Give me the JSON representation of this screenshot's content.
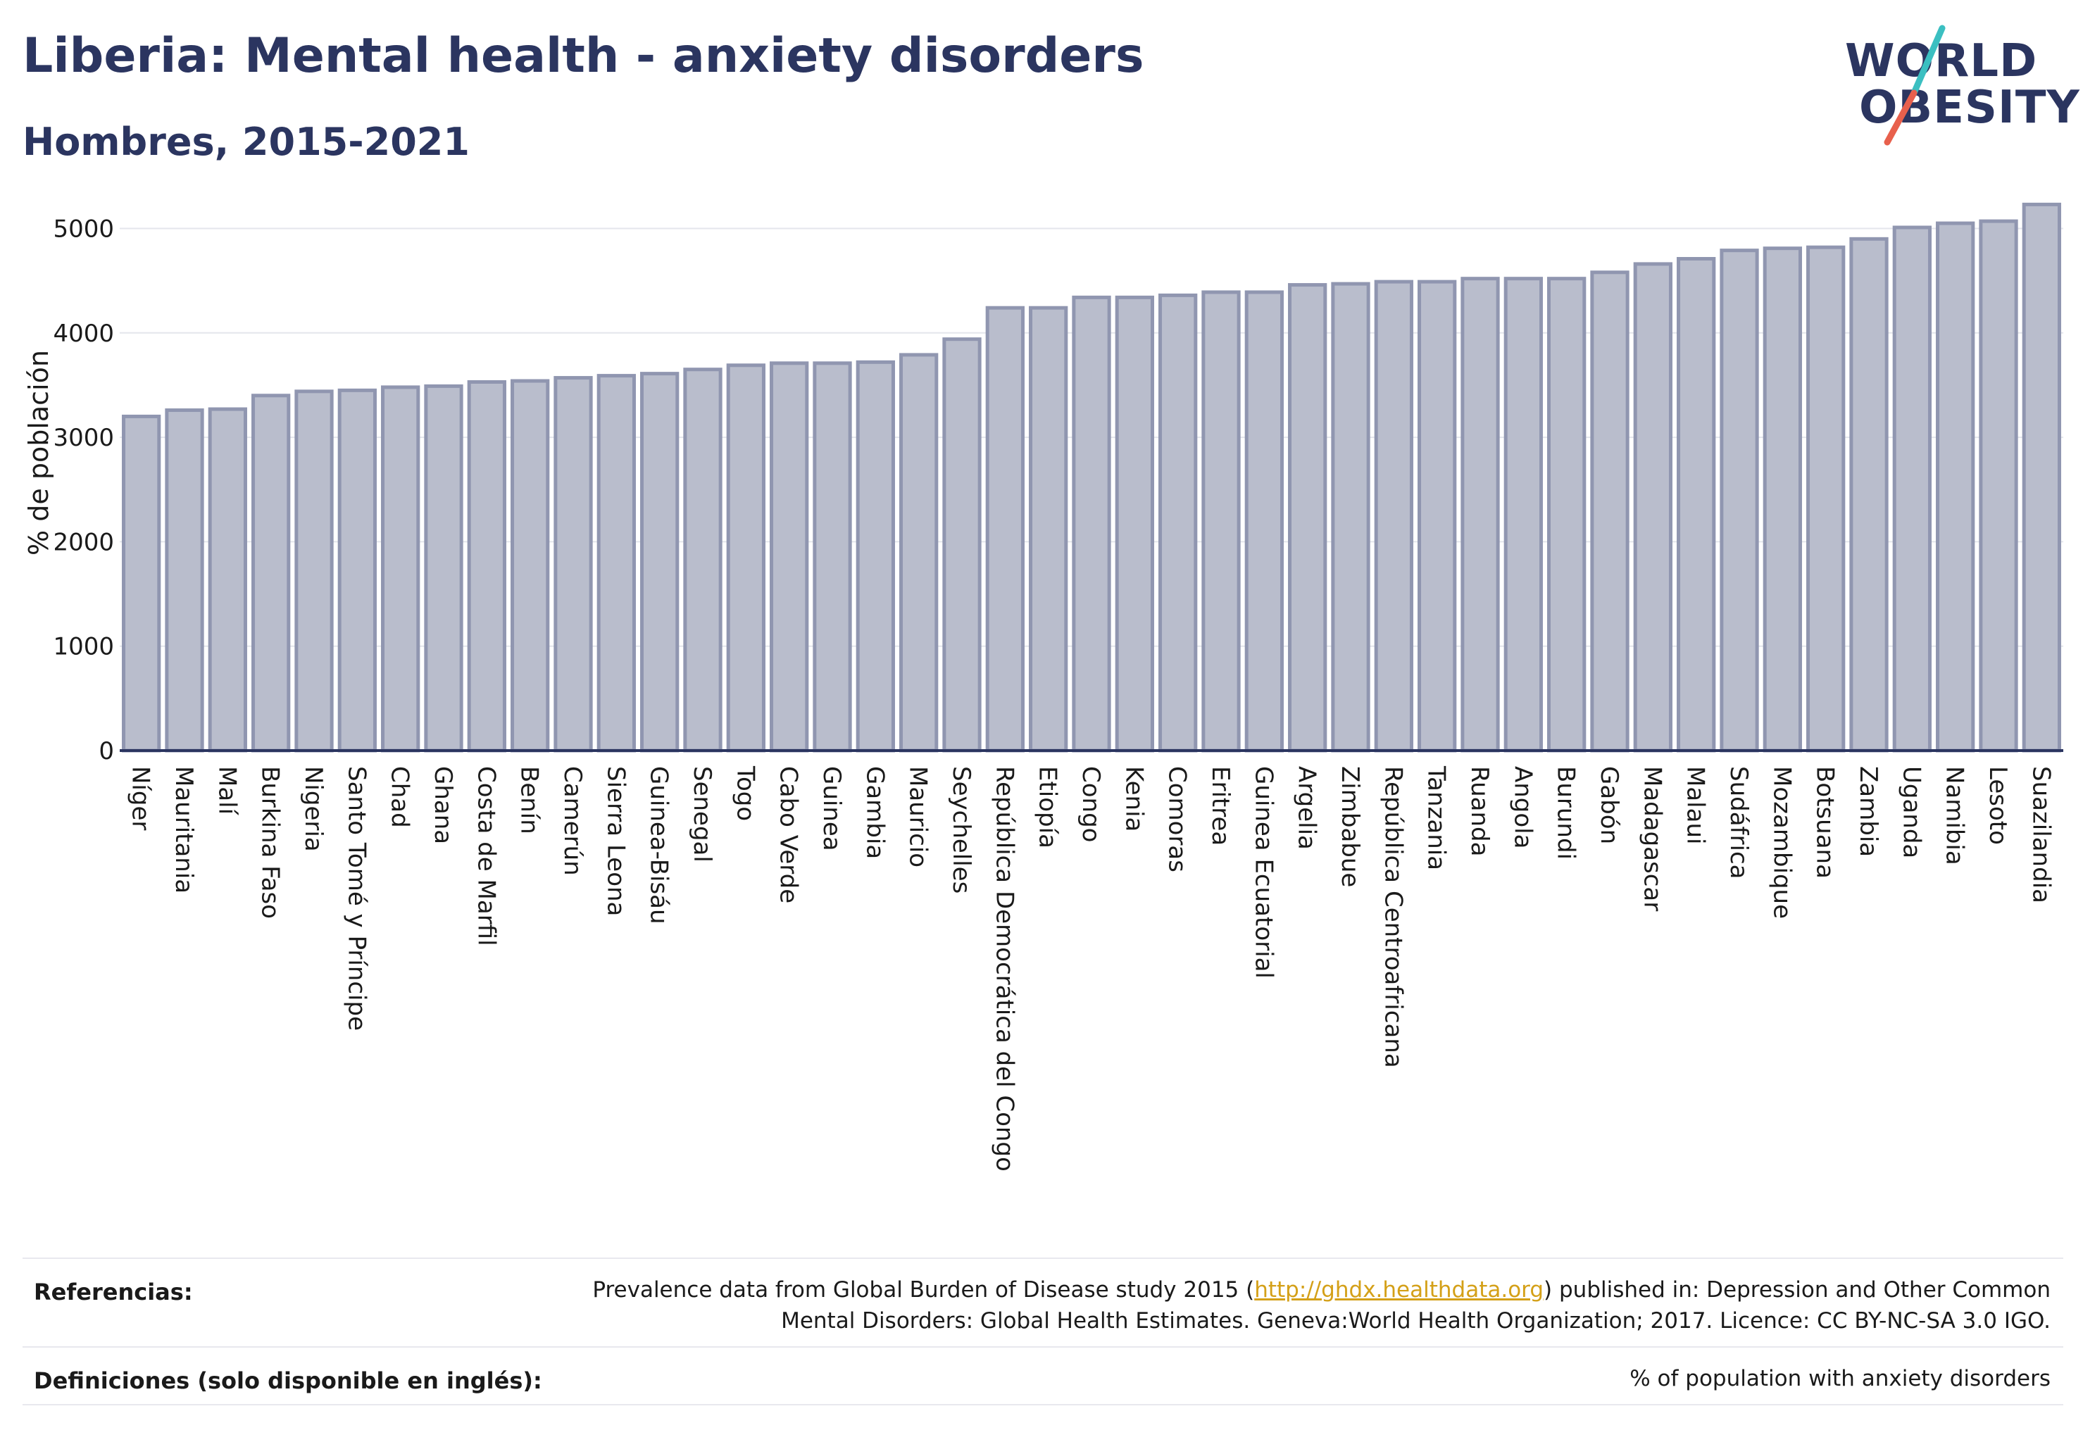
{
  "header": {
    "title": "Liberia: Mental health - anxiety disorders",
    "subtitle": "Hombres, 2015-2021"
  },
  "logo": {
    "line1": "WORLD",
    "line2": "OBESITY",
    "colors": {
      "text": "#2b3560",
      "slash_top": "#3bbfc1",
      "slash_bottom": "#e8604c"
    }
  },
  "chart_data": {
    "type": "bar",
    "ylabel": "% de población",
    "ylim": [
      0,
      5300
    ],
    "yticks": [
      0,
      1000,
      2000,
      3000,
      4000,
      5000
    ],
    "grid": true,
    "bar_fill": "#b9bdcc",
    "bar_stroke": "#9096b0",
    "categories": [
      "Níger",
      "Mauritania",
      "Malí",
      "Burkina Faso",
      "Nigeria",
      "Santo Tomé y Príncipe",
      "Chad",
      "Ghana",
      "Costa de Marfil",
      "Benín",
      "Camerún",
      "Sierra Leona",
      "Guinea-Bisáu",
      "Senegal",
      "Togo",
      "Cabo Verde",
      "Guinea",
      "Gambia",
      "Mauricio",
      "Seychelles",
      "República Democrática del Congo",
      "Etiopía",
      "Congo",
      "Kenia",
      "Comoras",
      "Eritrea",
      "Guinea Ecuatorial",
      "Argelia",
      "Zimbabue",
      "República Centroafricana",
      "Tanzania",
      "Ruanda",
      "Angola",
      "Burundi",
      "Gabón",
      "Madagascar",
      "Malaui",
      "Sudáfrica",
      "Mozambique",
      "Botsuana",
      "Zambia",
      "Uganda",
      "Namibia",
      "Lesoto",
      "Suazilandia"
    ],
    "values": [
      3200,
      3260,
      3270,
      3400,
      3440,
      3450,
      3480,
      3490,
      3530,
      3540,
      3570,
      3590,
      3610,
      3650,
      3690,
      3710,
      3710,
      3720,
      3790,
      3940,
      4240,
      4240,
      4340,
      4340,
      4360,
      4390,
      4390,
      4460,
      4470,
      4490,
      4490,
      4520,
      4520,
      4520,
      4580,
      4660,
      4710,
      4790,
      4810,
      4820,
      4900,
      5010,
      5050,
      5070,
      5230
    ]
  },
  "footer": {
    "references_label": "Referencias:",
    "references_pre": "Prevalence data from Global Burden of Disease study 2015 (",
    "references_link": "http://ghdx.healthdata.org",
    "references_post": ") published in: Depression and Other Common",
    "references_line2": "Mental Disorders: Global Health Estimates. Geneva:World Health Organization; 2017. Licence: CC BY-NC-SA 3.0 IGO.",
    "definitions_label": "Definiciones (solo disponible en inglés):",
    "definitions_text": "% of population with anxiety disorders"
  }
}
